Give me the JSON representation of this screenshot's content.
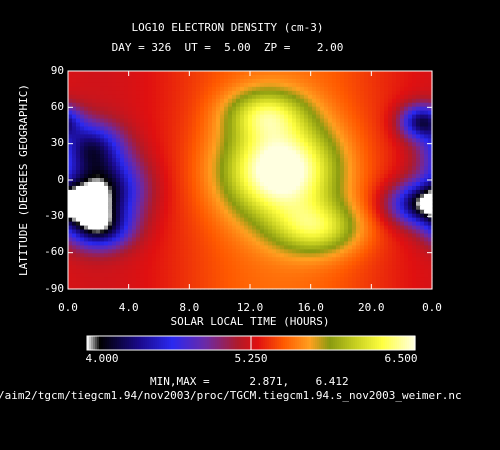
{
  "title_line1": "LOG10 ELECTRON DENSITY (cm-3)",
  "title_line2": "DAY = 326  UT =  5.00  ZP =    2.00",
  "xlabel": "SOLAR LOCAL TIME (HOURS)",
  "ylabel": "LATITUDE (DEGREES GEOGRAPHIC)",
  "minmax_text": "MIN,MAX =      2.871,    6.412",
  "file_path": "/aim2/tgcm/tiegcm1.94/nov2003/proc/TGCM.tiegcm1.94.s_nov2003_weimer.nc",
  "chart_data": {
    "type": "heatmap",
    "x_ticks": [
      "0.0",
      "4.0",
      "8.0",
      "12.0",
      "16.0",
      "20.0",
      "0.0"
    ],
    "y_ticks": [
      "90",
      "60",
      "30",
      "0",
      "-30",
      "-60",
      "-90"
    ],
    "colorbar_labels": [
      "4.000",
      "5.250",
      "6.500"
    ],
    "colorbar_range": [
      4.0,
      6.5
    ],
    "x_range_hours": [
      0,
      24
    ],
    "y_range_deg": [
      -90,
      90
    ],
    "data_min": 2.871,
    "data_max": 6.412,
    "colors": {
      "c0": "#ffffff",
      "c1": "#000000",
      "c2": "#1a0a8c",
      "c3": "#2a28f0",
      "c4": "#6a2aa8",
      "c5": "#b01a2a",
      "c6": "#e01010",
      "c7": "#ff5a00",
      "c8": "#ffa020",
      "c9": "#8a9a10",
      "c10": "#c8d020",
      "c11": "#ffff40",
      "c12": "#ffffe0"
    },
    "features": [
      {
        "name": "dayside-anomaly",
        "lon_h": 14.0,
        "lat": 8,
        "sx_h": 2.6,
        "sy": 28,
        "value": 1.0
      },
      {
        "name": "dayside-anomaly-south",
        "lon_h": 16.5,
        "lat": -40,
        "sx_h": 2.0,
        "sy": 15,
        "value": 0.55
      },
      {
        "name": "dayside-anomaly-north",
        "lon_h": 13.0,
        "lat": 55,
        "sx_h": 1.8,
        "sy": 14,
        "value": 0.5
      },
      {
        "name": "night-trough-core",
        "lon_h": 2.2,
        "lat": -8,
        "sx_h": 1.8,
        "sy": 20,
        "value": -1.0
      },
      {
        "name": "night-trough-north",
        "lon_h": 1.5,
        "lat": 28,
        "sx_h": 1.4,
        "sy": 14,
        "value": -0.7
      },
      {
        "name": "night-trough-south",
        "lon_h": 2.0,
        "lat": -40,
        "sx_h": 1.4,
        "sy": 12,
        "value": -0.8
      },
      {
        "name": "dusk-trough",
        "lon_h": 23.5,
        "lat": -20,
        "sx_h": 1.6,
        "sy": 12,
        "value": -0.95
      },
      {
        "name": "dusk-trough-north",
        "lon_h": 23.3,
        "lat": 48,
        "sx_h": 1.0,
        "sy": 10,
        "value": -0.85
      }
    ]
  }
}
